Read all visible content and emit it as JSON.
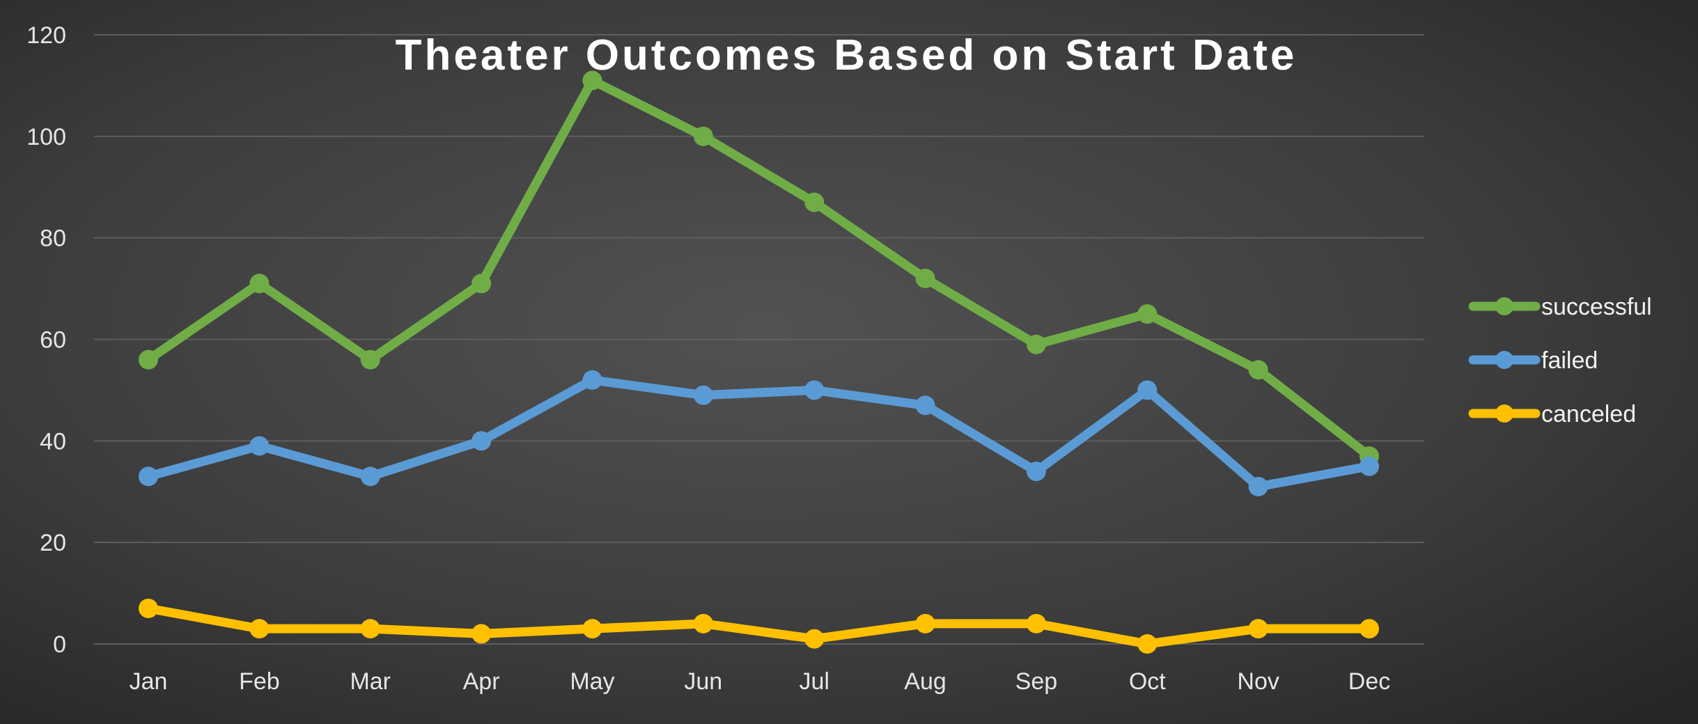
{
  "chart_data": {
    "type": "line",
    "title": "Theater Outcomes Based on Start Date",
    "xlabel": "",
    "ylabel": "",
    "ylim": [
      0,
      120
    ],
    "yticks": [
      0,
      20,
      40,
      60,
      80,
      100,
      120
    ],
    "grid": true,
    "legend_position": "right",
    "categories": [
      "Jan",
      "Feb",
      "Mar",
      "Apr",
      "May",
      "Jun",
      "Jul",
      "Aug",
      "Sep",
      "Oct",
      "Nov",
      "Dec"
    ],
    "series": [
      {
        "name": "successful",
        "color": "#70ad47",
        "values": [
          56,
          71,
          56,
          71,
          111,
          100,
          87,
          72,
          59,
          65,
          54,
          37
        ]
      },
      {
        "name": "failed",
        "color": "#5b9bd5",
        "values": [
          33,
          39,
          33,
          40,
          52,
          49,
          50,
          47,
          34,
          50,
          31,
          35
        ]
      },
      {
        "name": "canceled",
        "color": "#ffc000",
        "values": [
          7,
          3,
          3,
          2,
          3,
          4,
          1,
          4,
          4,
          0,
          3,
          3
        ]
      }
    ]
  }
}
